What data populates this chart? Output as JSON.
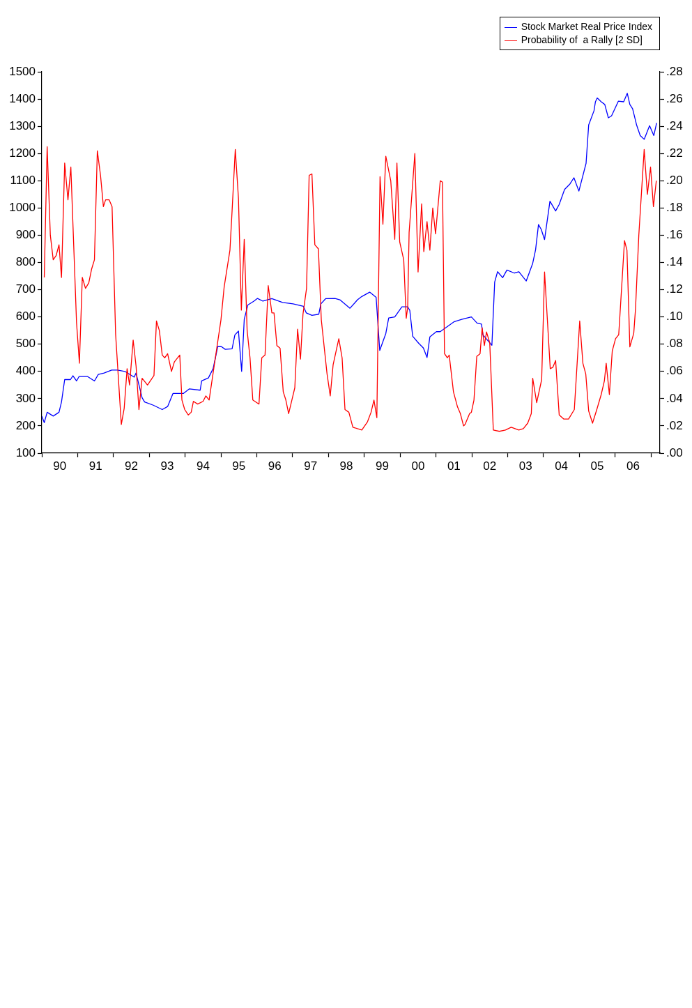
{
  "chart_data": {
    "type": "line",
    "xlim": [
      "1990-01-01",
      "2007-04-01"
    ],
    "xticks": [
      {
        "value": "1990-01-01",
        "label": null
      },
      {
        "value": "1990-07-01",
        "label": "90"
      },
      {
        "value": "1991-01-01",
        "label": null
      },
      {
        "value": "1991-07-01",
        "label": "91"
      },
      {
        "value": "1992-01-01",
        "label": null
      },
      {
        "value": "1992-07-01",
        "label": "92"
      },
      {
        "value": "1993-01-01",
        "label": null
      },
      {
        "value": "1993-07-01",
        "label": "93"
      },
      {
        "value": "1994-01-01",
        "label": null
      },
      {
        "value": "1994-07-01",
        "label": "94"
      },
      {
        "value": "1995-01-01",
        "label": null
      },
      {
        "value": "1995-07-01",
        "label": "95"
      },
      {
        "value": "1996-01-01",
        "label": null
      },
      {
        "value": "1996-07-01",
        "label": "96"
      },
      {
        "value": "1997-01-01",
        "label": null
      },
      {
        "value": "1997-07-01",
        "label": "97"
      },
      {
        "value": "1998-01-01",
        "label": null
      },
      {
        "value": "1998-07-01",
        "label": "98"
      },
      {
        "value": "1999-01-01",
        "label": null
      },
      {
        "value": "1999-07-01",
        "label": "99"
      },
      {
        "value": "2000-01-01",
        "label": null
      },
      {
        "value": "2000-07-01",
        "label": "00"
      },
      {
        "value": "2001-01-01",
        "label": null
      },
      {
        "value": "2001-07-01",
        "label": "01"
      },
      {
        "value": "2002-01-01",
        "label": null
      },
      {
        "value": "2002-07-01",
        "label": "02"
      },
      {
        "value": "2003-01-01",
        "label": null
      },
      {
        "value": "2003-07-01",
        "label": "03"
      },
      {
        "value": "2004-01-01",
        "label": null
      },
      {
        "value": "2004-07-01",
        "label": "04"
      },
      {
        "value": "2005-01-01",
        "label": null
      },
      {
        "value": "2005-07-01",
        "label": "05"
      },
      {
        "value": "2006-01-01",
        "label": null
      },
      {
        "value": "2006-07-01",
        "label": "06"
      },
      {
        "value": "2007-01-01",
        "label": null
      }
    ],
    "ylim": [
      100,
      1500
    ],
    "yticks": [
      100,
      200,
      300,
      400,
      500,
      600,
      700,
      800,
      900,
      1000,
      1100,
      1200,
      1300,
      1400,
      1500
    ],
    "y2lim": [
      0,
      0.28
    ],
    "y2ticks": [
      {
        "value": 0,
        "label": ".00"
      },
      {
        "value": 0.02,
        "label": ".02"
      },
      {
        "value": 0.04,
        "label": ".04"
      },
      {
        "value": 0.06,
        "label": ".06"
      },
      {
        "value": 0.08,
        "label": ".08"
      },
      {
        "value": 0.1,
        "label": ".10"
      },
      {
        "value": 0.12,
        "label": ".12"
      },
      {
        "value": 0.14,
        "label": ".14"
      },
      {
        "value": 0.16,
        "label": ".16"
      },
      {
        "value": 0.18,
        "label": ".18"
      },
      {
        "value": 0.2,
        "label": ".20"
      },
      {
        "value": 0.22,
        "label": ".22"
      },
      {
        "value": 0.24,
        "label": ".24"
      },
      {
        "value": 0.26,
        "label": ".26"
      },
      {
        "value": 0.28,
        "label": ".28"
      }
    ],
    "legend": "top right",
    "marker": "none",
    "series": [
      {
        "name": "Stock Market Real Price Index",
        "color": "#0000ff",
        "x": [
          "1990-01-01",
          "1990-01-26",
          "1990-02-25",
          "1990-04-26",
          "1990-06-24",
          "1990-07-19",
          "1990-08-21",
          "1990-10-19",
          "1990-11-14",
          "1990-12-20",
          "1991-01-15",
          "1991-04-12",
          "1991-06-20",
          "1991-07-29",
          "1991-09-27",
          "1991-12-13",
          "1992-02-11",
          "1992-04-26",
          "1992-07-29",
          "1992-08-18",
          "1992-10-19",
          "1992-11-14",
          "1993-02-11",
          "1993-05-11",
          "1993-07-05",
          "1993-08-29",
          "1993-10-01",
          "1993-12-13",
          "1994-02-14",
          "1994-06-02",
          "1994-06-17",
          "1994-08-25",
          "1994-10-12",
          "1994-11-11",
          "1994-11-29",
          "1995-01-05",
          "1995-02-14",
          "1995-04-23",
          "1995-05-21",
          "1995-06-27",
          "1995-07-29",
          "1995-08-25",
          "1995-10-01",
          "1995-12-02",
          "1996-01-08",
          "1996-03-02",
          "1996-06-02",
          "1996-09-20",
          "1997-01-05",
          "1997-04-19",
          "1997-05-18",
          "1997-07-15",
          "1997-09-24",
          "1997-10-15",
          "1997-12-02",
          "1998-03-06",
          "1998-04-26",
          "1998-08-07",
          "1998-10-23",
          "1998-12-06",
          "1999-02-25",
          "1999-04-30",
          "1999-06-06",
          "1999-08-07",
          "1999-09-06",
          "1999-11-07",
          "2000-01-19",
          "2000-03-17",
          "2000-04-08",
          "2000-05-07",
          "2000-07-08",
          "2000-08-25",
          "2000-10-01",
          "2000-10-30",
          "2001-01-05",
          "2001-02-14",
          "2001-07-01",
          "2001-09-20",
          "2001-12-27",
          "2002-02-25",
          "2002-04-08",
          "2002-04-23",
          "2002-07-23",
          "2002-08-21",
          "2002-09-20",
          "2002-11-11",
          "2002-12-24",
          "2003-03-09",
          "2003-04-23",
          "2003-05-11",
          "2003-07-08",
          "2003-08-07",
          "2003-09-13",
          "2003-10-12",
          "2003-11-11",
          "2003-12-09",
          "2004-01-12",
          "2004-03-06",
          "2004-05-03",
          "2004-06-09",
          "2004-08-03",
          "2004-09-27",
          "2004-11-07",
          "2004-12-27",
          "2005-03-09",
          "2005-04-05",
          "2005-05-29",
          "2005-06-13",
          "2005-07-01",
          "2005-08-11",
          "2005-09-17",
          "2005-10-23",
          "2005-11-25",
          "2006-02-03",
          "2006-03-27",
          "2006-05-03",
          "2006-05-29",
          "2006-06-27",
          "2006-08-07",
          "2006-09-13",
          "2006-10-23",
          "2006-12-17",
          "2007-01-30",
          "2007-02-28"
        ],
        "values": [
          236,
          212,
          250,
          236,
          250,
          288,
          370,
          370,
          384,
          365,
          381,
          381,
          365,
          389,
          394,
          405,
          405,
          400,
          379,
          394,
          303,
          288,
          276,
          260,
          271,
          319,
          319,
          319,
          336,
          331,
          365,
          376,
          410,
          460,
          491,
          491,
          481,
          483,
          534,
          548,
          400,
          591,
          644,
          658,
          668,
          658,
          667,
          653,
          648,
          639,
          615,
          606,
          610,
          648,
          667,
          668,
          663,
          632,
          663,
          675,
          691,
          672,
          477,
          539,
          596,
          600,
          637,
          637,
          624,
          529,
          503,
          486,
          451,
          527,
          546,
          546,
          582,
          591,
          600,
          577,
          574,
          534,
          496,
          728,
          766,
          744,
          772,
          761,
          766,
          758,
          732,
          761,
          797,
          847,
          939,
          921,
          884,
          1025,
          989,
          1013,
          1068,
          1088,
          1111,
          1062,
          1164,
          1305,
          1357,
          1390,
          1404,
          1390,
          1380,
          1331,
          1338,
          1392,
          1390,
          1421,
          1380,
          1364,
          1304,
          1266,
          1252,
          1302,
          1266,
          1312
        ]
      },
      {
        "name": "Probability of  a Rally [2 SD]",
        "color": "#ff0000",
        "axis": "y2",
        "x": [
          "1990-01-26",
          "1990-02-25",
          "1990-03-27",
          "1990-04-26",
          "1990-05-25",
          "1990-06-24",
          "1990-07-19",
          "1990-08-21",
          "1990-09-24",
          "1990-10-23",
          "1990-12-20",
          "1991-01-19",
          "1991-02-18",
          "1991-03-20",
          "1991-04-23",
          "1991-05-21",
          "1991-06-20",
          "1991-07-19",
          "1991-08-21",
          "1991-09-20",
          "1991-10-12",
          "1991-11-18",
          "1991-12-17",
          "1992-01-23",
          "1992-03-20",
          "1992-04-19",
          "1992-05-18",
          "1992-06-13",
          "1992-07-19",
          "1992-08-18",
          "1992-09-17",
          "1992-10-19",
          "1992-12-13",
          "1993-02-18",
          "1993-03-13",
          "1993-04-12",
          "1993-05-11",
          "1993-06-06",
          "1993-07-05",
          "1993-08-14",
          "1993-09-13",
          "1993-11-07",
          "1993-11-29",
          "1993-12-27",
          "1994-02-03",
          "1994-03-02",
          "1994-03-24",
          "1994-05-07",
          "1994-07-01",
          "1994-07-29",
          "1994-09-02",
          "1995-01-01",
          "1995-02-03",
          "1995-04-01",
          "1995-04-23",
          "1995-05-25",
          "1995-06-27",
          "1995-07-26",
          "1995-08-25",
          "1995-09-24",
          "1995-10-23",
          "1995-11-21",
          "1996-01-23",
          "1996-02-21",
          "1996-03-24",
          "1996-04-26",
          "1996-06-02",
          "1996-06-24",
          "1996-07-23",
          "1996-08-25",
          "1996-09-27",
          "1996-10-23",
          "1996-11-21",
          "1996-12-27",
          "1997-01-23",
          "1997-02-21",
          "1997-03-20",
          "1997-04-15",
          "1997-05-21",
          "1997-06-17",
          "1997-07-15",
          "1997-08-14",
          "1997-09-20",
          "1997-10-19",
          "1997-12-17",
          "1998-01-19",
          "1998-02-18",
          "1998-04-15",
          "1998-05-18",
          "1998-06-17",
          "1998-07-26",
          "1998-09-06",
          "1998-12-06",
          "1999-02-03",
          "1999-03-09",
          "1999-04-08",
          "1999-05-07",
          "1999-06-09",
          "1999-07-08",
          "1999-08-07",
          "1999-09-27",
          "1999-11-07",
          "1999-11-29",
          "1999-12-27",
          "2000-02-07",
          "2000-03-02",
          "2000-03-17",
          "2000-04-01",
          "2000-05-29",
          "2000-07-01",
          "2000-08-07",
          "2000-08-29",
          "2000-10-01",
          "2000-10-30",
          "2000-11-29",
          "2000-12-27",
          "2001-02-14",
          "2001-03-06",
          "2001-03-27",
          "2001-04-26",
          "2001-05-14",
          "2001-06-27",
          "2001-08-07",
          "2001-09-06",
          "2001-10-08",
          "2001-10-23",
          "2001-12-09",
          "2001-12-27",
          "2002-01-23",
          "2002-02-21",
          "2002-03-24",
          "2002-04-15",
          "2002-05-07",
          "2002-05-29",
          "2002-07-01",
          "2002-08-07",
          "2002-10-08",
          "2002-12-09",
          "2003-02-07",
          "2003-04-23",
          "2003-06-09",
          "2003-07-23",
          "2003-08-29",
          "2003-09-13",
          "2003-10-23",
          "2003-12-13",
          "2004-01-12",
          "2004-03-09",
          "2004-04-05",
          "2004-05-03",
          "2004-06-09",
          "2004-07-26",
          "2004-09-13",
          "2004-11-11",
          "2005-01-05",
          "2005-02-07",
          "2005-03-06",
          "2005-04-05",
          "2005-05-14",
          "2005-06-27",
          "2005-08-11",
          "2005-09-13",
          "2005-10-01",
          "2005-11-03",
          "2005-12-02",
          "2006-01-05",
          "2006-02-07",
          "2006-02-25",
          "2006-04-05",
          "2006-04-30",
          "2006-05-29",
          "2006-07-08",
          "2006-07-26",
          "2006-08-29",
          "2006-10-23",
          "2006-11-25",
          "2006-12-27",
          "2007-01-26",
          "2007-02-25"
        ],
        "values": [
          0.129,
          0.225,
          0.16,
          0.142,
          0.145,
          0.153,
          0.129,
          0.213,
          0.186,
          0.21,
          0.096,
          0.066,
          0.129,
          0.121,
          0.125,
          0.135,
          0.142,
          0.222,
          0.204,
          0.181,
          0.186,
          0.186,
          0.181,
          0.087,
          0.021,
          0.033,
          0.062,
          0.05,
          0.083,
          0.064,
          0.032,
          0.055,
          0.05,
          0.057,
          0.097,
          0.09,
          0.072,
          0.07,
          0.073,
          0.06,
          0.067,
          0.072,
          0.039,
          0.032,
          0.028,
          0.03,
          0.038,
          0.036,
          0.038,
          0.042,
          0.039,
          0.098,
          0.122,
          0.149,
          0.178,
          0.223,
          0.187,
          0.105,
          0.157,
          0.09,
          0.07,
          0.039,
          0.036,
          0.07,
          0.072,
          0.123,
          0.103,
          0.103,
          0.079,
          0.077,
          0.045,
          0.039,
          0.029,
          0.04,
          0.048,
          0.091,
          0.069,
          0.102,
          0.121,
          0.204,
          0.205,
          0.153,
          0.15,
          0.098,
          0.058,
          0.042,
          0.065,
          0.084,
          0.07,
          0.032,
          0.03,
          0.019,
          0.017,
          0.023,
          0.03,
          0.039,
          0.026,
          0.203,
          0.168,
          0.218,
          0.2,
          0.157,
          0.213,
          0.155,
          0.142,
          0.099,
          0.107,
          0.162,
          0.22,
          0.133,
          0.183,
          0.148,
          0.17,
          0.149,
          0.18,
          0.161,
          0.2,
          0.199,
          0.073,
          0.07,
          0.072,
          0.045,
          0.034,
          0.029,
          0.02,
          0.021,
          0.029,
          0.03,
          0.039,
          0.071,
          0.073,
          0.092,
          0.079,
          0.089,
          0.081,
          0.017,
          0.016,
          0.017,
          0.019,
          0.017,
          0.018,
          0.022,
          0.029,
          0.055,
          0.037,
          0.054,
          0.133,
          0.062,
          0.063,
          0.068,
          0.028,
          0.025,
          0.025,
          0.032,
          0.097,
          0.066,
          0.058,
          0.031,
          0.022,
          0.032,
          0.043,
          0.053,
          0.066,
          0.043,
          0.075,
          0.084,
          0.087,
          0.108,
          0.156,
          0.149,
          0.078,
          0.088,
          0.106,
          0.16,
          0.223,
          0.19,
          0.21,
          0.181,
          0.2
        ]
      }
    ]
  }
}
